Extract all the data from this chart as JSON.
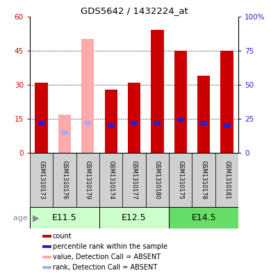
{
  "title": "GDS5642 / 1432224_at",
  "samples": [
    "GSM1310173",
    "GSM1310176",
    "GSM1310179",
    "GSM1310174",
    "GSM1310177",
    "GSM1310180",
    "GSM1310175",
    "GSM1310178",
    "GSM1310181"
  ],
  "counts": [
    31,
    0,
    0,
    28,
    31,
    54,
    45,
    34,
    45
  ],
  "absent_counts": [
    0,
    17,
    50,
    0,
    0,
    0,
    0,
    0,
    0
  ],
  "percentile_ranks": [
    22,
    0,
    22,
    20,
    22,
    22,
    24,
    22,
    20
  ],
  "absent_ranks": [
    0,
    15,
    22,
    0,
    0,
    0,
    0,
    0,
    0
  ],
  "is_absent": [
    false,
    true,
    true,
    false,
    false,
    false,
    false,
    false,
    false
  ],
  "age_groups": [
    {
      "label": "E11.5",
      "start": 0,
      "end": 3
    },
    {
      "label": "E12.5",
      "start": 3,
      "end": 6
    },
    {
      "label": "E14.5",
      "start": 6,
      "end": 9
    }
  ],
  "age_colors": [
    "#ccffcc",
    "#ccffcc",
    "#66dd66"
  ],
  "ylim_left": [
    0,
    60
  ],
  "ylim_right": [
    0,
    100
  ],
  "yticks_left": [
    0,
    15,
    30,
    45,
    60
  ],
  "ytick_labels_left": [
    "0",
    "15",
    "30",
    "45",
    "60"
  ],
  "yticks_right": [
    0,
    25,
    50,
    75,
    100
  ],
  "ytick_labels_right": [
    "0",
    "25",
    "50",
    "75",
    "100%"
  ],
  "bar_color_normal": "#cc0000",
  "bar_color_absent": "#ffaaaa",
  "rank_color_normal": "#2222cc",
  "rank_color_absent": "#aaaaee",
  "bar_width": 0.55,
  "rank_bar_width": 0.3,
  "rank_bar_height": 1.8,
  "grid_ticks": [
    15,
    30,
    45
  ],
  "legend_items": [
    {
      "color": "#cc0000",
      "label": "count"
    },
    {
      "color": "#2222cc",
      "label": "percentile rank within the sample"
    },
    {
      "color": "#ffaaaa",
      "label": "value, Detection Call = ABSENT"
    },
    {
      "color": "#aaaaee",
      "label": "rank, Detection Call = ABSENT"
    }
  ]
}
